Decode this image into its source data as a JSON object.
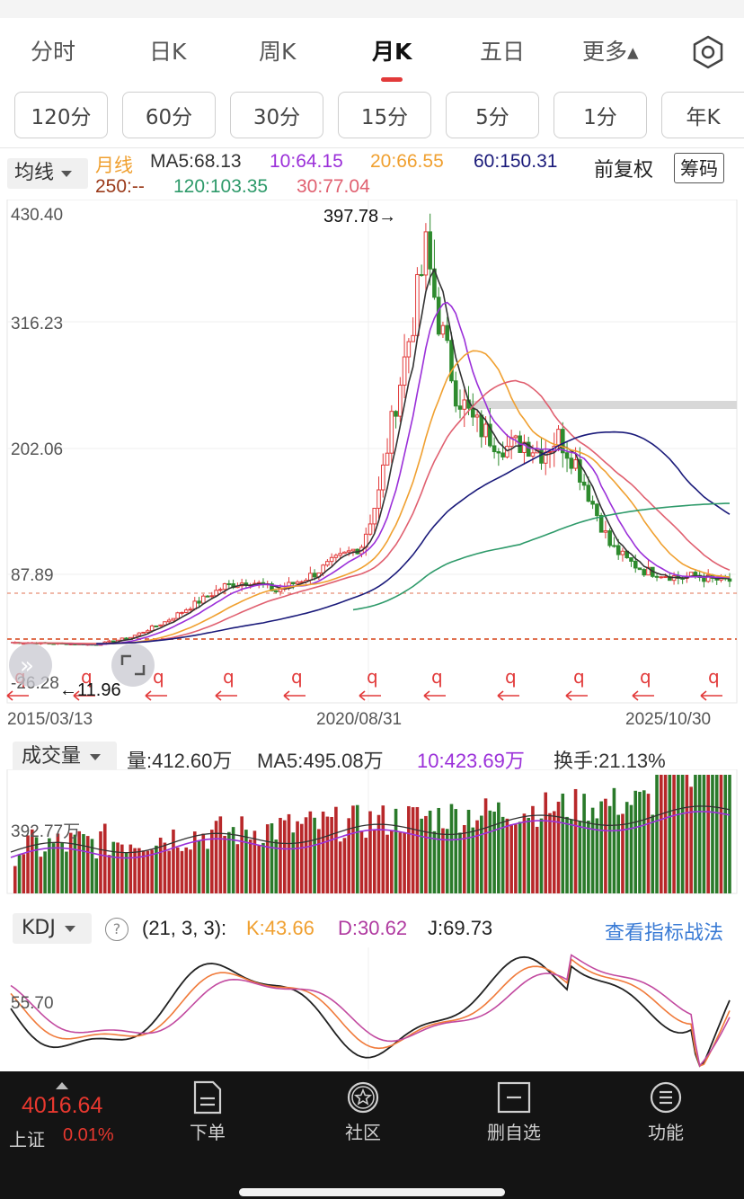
{
  "period_tabs": {
    "items": [
      "分时",
      "日K",
      "周K",
      "月K",
      "五日",
      "更多▴"
    ],
    "active": "月K"
  },
  "minute_tabs": [
    "120分",
    "60分",
    "30分",
    "15分",
    "5分",
    "1分",
    "年K"
  ],
  "ma_legend": {
    "dropdown": "均线",
    "period": "月线",
    "ma5": "MA5:68.13",
    "ma10": "10:64.15",
    "ma20": "20:66.55",
    "ma60": "60:150.31",
    "ma250": "250:--",
    "ma120": "120:103.35",
    "ma30": "30:77.04",
    "adjust": "前复权",
    "chip_button": "筹码"
  },
  "price_chart": {
    "y_labels": [
      "430.40",
      "316.23",
      "202.06",
      "87.89",
      "-26.28"
    ],
    "max_marker": "397.78→",
    "min_marker": "←11.96",
    "dates": [
      "2015/03/13",
      "2020/08/31",
      "2025/10/30"
    ]
  },
  "volume": {
    "dropdown": "成交量",
    "vol": "量:412.60万",
    "ma5": "MA5:495.08万",
    "ma10": "10:423.69万",
    "turnover": "换手:21.13%",
    "y_label": "392.77万"
  },
  "kdj": {
    "dropdown": "KDJ",
    "help": "?",
    "params": "(21, 3, 3):",
    "k": "K:43.66",
    "d": "D:30.62",
    "j": "J:69.73",
    "link": "查看指标战法",
    "y_label": "55.70"
  },
  "bottom_bar": {
    "index_price": "4016.64",
    "index_name": "上证",
    "index_change": "0.01%",
    "nav": [
      "下单",
      "社区",
      "删自选",
      "功能"
    ]
  },
  "colors": {
    "up": "#e23a3a",
    "down": "#2e8b2e",
    "ma5": "#333333",
    "ma10": "#9b30d9",
    "ma20": "#f0a030",
    "ma60": "#1a1a7a",
    "ma120": "#2e9a6a",
    "ma30": "#e06070",
    "link": "#3a7bd5"
  },
  "chart_data": {
    "type": "candlestick",
    "title": "",
    "y_range": [
      -26.28,
      430.4
    ],
    "close_path_approx": [
      {
        "x": "2015/03/13",
        "y": 15
      },
      {
        "x": "2016",
        "y": 12
      },
      {
        "x": "2017",
        "y": 30
      },
      {
        "x": "2018",
        "y": 70
      },
      {
        "x": "2019",
        "y": 78
      },
      {
        "x": "2020/03",
        "y": 120
      },
      {
        "x": "2020/08/31",
        "y": 280
      },
      {
        "x": "2021",
        "y": 397.78
      },
      {
        "x": "2022",
        "y": 210
      },
      {
        "x": "2023",
        "y": 200
      },
      {
        "x": "2024",
        "y": 90
      },
      {
        "x": "2025/10/30",
        "y": 75
      }
    ]
  }
}
